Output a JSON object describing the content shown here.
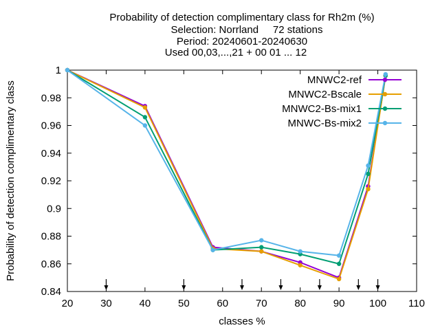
{
  "chart_data": {
    "type": "line",
    "title_lines": [
      "Probability of detection complimentary class  for Rh2m (%)",
      "Selection: Norrland     72 stations",
      "Period: 20240601-20240630",
      "Used 00,03,...,21 + 00 01 ... 12"
    ],
    "xlabel": "classes %",
    "ylabel": "Probability of detection complimentary class",
    "xlim": [
      20,
      110
    ],
    "ylim": [
      0.84,
      1.0
    ],
    "xticks": [
      20,
      30,
      40,
      50,
      60,
      70,
      80,
      90,
      100,
      110
    ],
    "yticks": [
      0.84,
      0.86,
      0.88,
      0.9,
      0.92,
      0.94,
      0.96,
      0.98,
      1.0
    ],
    "xtick_labels": [
      "20",
      "30",
      "40",
      "50",
      "60",
      "70",
      "80",
      "90",
      "100",
      "110"
    ],
    "ytick_labels": [
      "0.84",
      "0.86",
      "0.88",
      "0.9",
      "0.92",
      "0.94",
      "0.96",
      "0.98",
      "1"
    ],
    "threshold_markers_x": [
      30,
      50,
      65,
      75,
      85,
      95,
      100
    ],
    "grid": false,
    "legend_position": "top-right",
    "series": [
      {
        "name": "MNWC2-ref",
        "color": "#9400d3",
        "marker": "circle",
        "x": [
          20,
          40,
          57.5,
          70,
          80,
          90,
          97.5,
          102
        ],
        "y": [
          1.0,
          0.974,
          0.872,
          0.869,
          0.861,
          0.85,
          0.916,
          0.996
        ]
      },
      {
        "name": "MNWC2-Bscale",
        "color": "#e69f00",
        "marker": "circle",
        "x": [
          20,
          40,
          57.5,
          70,
          80,
          90,
          97.5,
          102
        ],
        "y": [
          1.0,
          0.973,
          0.871,
          0.869,
          0.859,
          0.849,
          0.914,
          0.996
        ]
      },
      {
        "name": "MNWC2-Bs-mix1",
        "color": "#009e73",
        "marker": "circle",
        "x": [
          20,
          40,
          57.5,
          70,
          80,
          90,
          97.5,
          102
        ],
        "y": [
          1.0,
          0.966,
          0.87,
          0.872,
          0.867,
          0.86,
          0.925,
          0.996
        ]
      },
      {
        "name": "MNWC-Bs-mix2",
        "color": "#56b4e9",
        "marker": "circle",
        "x": [
          20,
          40,
          57.5,
          70,
          80,
          90,
          97.5,
          102
        ],
        "y": [
          1.0,
          0.96,
          0.87,
          0.877,
          0.869,
          0.866,
          0.931,
          0.997
        ]
      }
    ]
  }
}
